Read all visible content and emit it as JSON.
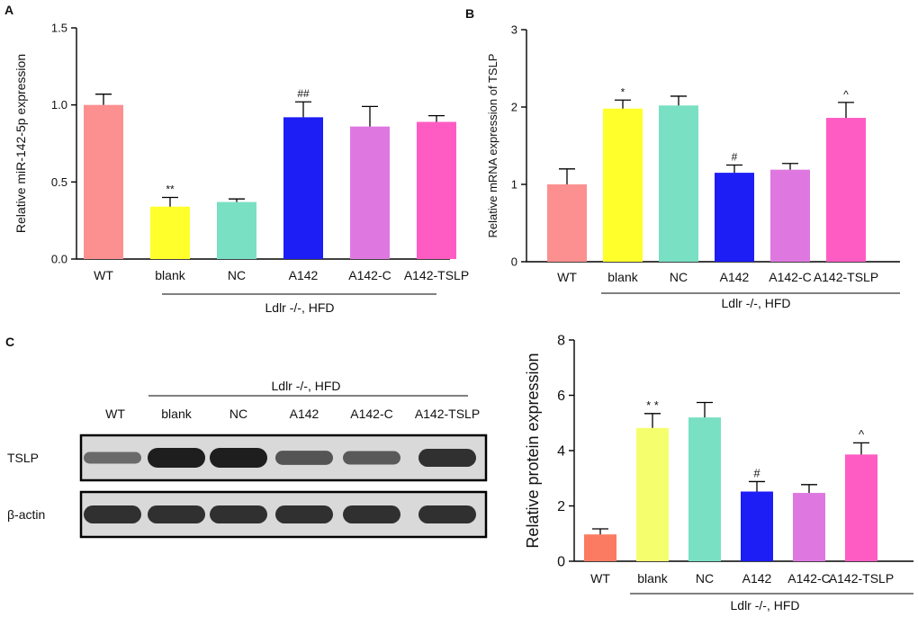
{
  "panels": {
    "A": "A",
    "B": "B",
    "C": "C"
  },
  "blot": {
    "group_label": "Ldlr -/-, HFD",
    "lanes": [
      "WT",
      "blank",
      "NC",
      "A142",
      "A142-C",
      "A142-TSLP"
    ],
    "rows": [
      {
        "label": "TSLP",
        "intensity": [
          0.35,
          1.0,
          1.0,
          0.55,
          0.5,
          0.85
        ]
      },
      {
        "label": "β-actin",
        "intensity": [
          0.85,
          0.85,
          0.85,
          0.85,
          0.85,
          0.85
        ]
      }
    ]
  },
  "chart_data": [
    {
      "id": "A",
      "type": "bar",
      "categories": [
        "WT",
        "blank",
        "NC",
        "A142",
        "A142-C",
        "A142-TSLP"
      ],
      "values": [
        1.0,
        0.34,
        0.37,
        0.92,
        0.86,
        0.89
      ],
      "errors": [
        0.07,
        0.06,
        0.02,
        0.1,
        0.13,
        0.04
      ],
      "annotations": [
        "",
        "**",
        "",
        "##",
        "",
        ""
      ],
      "colors": [
        "#fc8f8f",
        "#ffff2b",
        "#79e0c4",
        "#1d1df5",
        "#de78e0",
        "#ff5cc3"
      ],
      "title": "",
      "xlabel": "",
      "ylabel": "Relative miR-142-5p expression",
      "ylim": [
        0,
        1.5
      ],
      "yticks": [
        "0.0",
        "0.5",
        "1.0",
        "1.5"
      ],
      "group_label": "Ldlr -/-, HFD"
    },
    {
      "id": "B",
      "type": "bar",
      "categories": [
        "WT",
        "blank",
        "NC",
        "A142",
        "A142-C",
        "A142-TSLP"
      ],
      "values": [
        1.0,
        1.98,
        2.02,
        1.15,
        1.19,
        1.86
      ],
      "errors": [
        0.2,
        0.11,
        0.12,
        0.1,
        0.08,
        0.2
      ],
      "annotations": [
        "",
        "*",
        "",
        "#",
        "",
        "^"
      ],
      "colors": [
        "#fc8f8f",
        "#ffff2b",
        "#79e0c4",
        "#1d1df5",
        "#de78e0",
        "#ff5cc3"
      ],
      "title": "",
      "xlabel": "",
      "ylabel": "Relative mRNA expression of TSLP",
      "ylim": [
        0,
        3
      ],
      "yticks": [
        "0",
        "1",
        "2",
        "3"
      ],
      "group_label": "Ldlr -/-, HFD"
    },
    {
      "id": "C",
      "type": "bar",
      "categories": [
        "WT",
        "blank",
        "NC",
        "A142",
        "A142-C",
        "A142-TSLP"
      ],
      "values": [
        0.97,
        4.82,
        5.2,
        2.52,
        2.47,
        3.86
      ],
      "errors": [
        0.2,
        0.52,
        0.54,
        0.36,
        0.3,
        0.42
      ],
      "annotations": [
        "",
        "* *",
        "",
        "#",
        "",
        "^"
      ],
      "colors": [
        "#fa7b62",
        "#f5ff6e",
        "#79e0c4",
        "#1d1df5",
        "#de78e0",
        "#ff5cc3"
      ],
      "title": "",
      "xlabel": "",
      "ylabel": "Relative protein expression",
      "ylim": [
        0,
        8
      ],
      "yticks": [
        "0",
        "2",
        "4",
        "6",
        "8"
      ],
      "group_label": "Ldlr -/-, HFD"
    }
  ]
}
